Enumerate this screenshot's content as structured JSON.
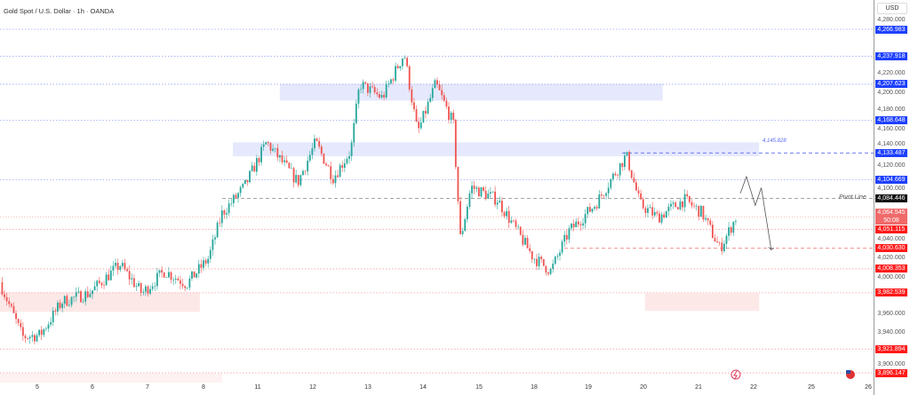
{
  "header": {
    "title": "Gold Spot / U.S. Dollar · 1h · OANDA",
    "currency": "USD"
  },
  "chart_data": {
    "type": "candlestick",
    "title": "Gold Spot / U.S. Dollar · 1h · OANDA",
    "ylim": [
      3890,
      4290
    ],
    "x_tick_labels": [
      "5",
      "6",
      "7",
      "8",
      "11",
      "12",
      "13",
      "14",
      "15",
      "18",
      "19",
      "20",
      "21",
      "22",
      "25",
      "26"
    ],
    "y_tick_labels": [
      "4,280.000",
      "4,220.000",
      "4,200.000",
      "4,180.000",
      "4,160.000",
      "4,140.000",
      "4,120.000",
      "4,100.000",
      "4,040.000",
      "4,020.000",
      "4,000.000",
      "3,960.000",
      "3,940.000",
      "3,900.000"
    ],
    "y_tick_values": [
      4280,
      4220,
      4200,
      4180,
      4160,
      4140,
      4120,
      4100,
      4040,
      4020,
      4000,
      3960,
      3940,
      3900
    ],
    "price_path_day_index_vs_price": [
      [
        -0.68,
        3994
      ],
      [
        -0.27,
        3935
      ],
      [
        0.05,
        3937
      ],
      [
        0.45,
        3973
      ],
      [
        0.94,
        3982
      ],
      [
        1.5,
        4013
      ],
      [
        1.9,
        3982
      ],
      [
        2.31,
        4006
      ],
      [
        2.71,
        3992
      ],
      [
        3.11,
        4020
      ],
      [
        3.35,
        4068
      ],
      [
        3.76,
        4097
      ],
      [
        4.16,
        4145
      ],
      [
        4.73,
        4102
      ],
      [
        5.05,
        4145
      ],
      [
        5.37,
        4107
      ],
      [
        5.69,
        4136
      ],
      [
        5.85,
        4208
      ],
      [
        6.26,
        4193
      ],
      [
        6.66,
        4241
      ],
      [
        6.9,
        4155
      ],
      [
        7.23,
        4208
      ],
      [
        7.55,
        4165
      ],
      [
        7.68,
        4040
      ],
      [
        7.87,
        4097
      ],
      [
        8.35,
        4083
      ],
      [
        9.0,
        4021
      ],
      [
        9.32,
        4006
      ],
      [
        9.65,
        4049
      ],
      [
        10.13,
        4078
      ],
      [
        10.69,
        4131
      ],
      [
        10.94,
        4078
      ],
      [
        11.26,
        4064
      ],
      [
        11.74,
        4083
      ],
      [
        12.06,
        4069
      ],
      [
        12.39,
        4030
      ],
      [
        12.68,
        4064
      ]
    ],
    "levels": [
      {
        "label": "4,266.983",
        "value": 4266.983,
        "color": "#1e40ff"
      },
      {
        "label": "4,237.918",
        "value": 4237.918,
        "color": "#1e40ff"
      },
      {
        "label": "4,207.623",
        "value": 4207.623,
        "color": "#1e40ff"
      },
      {
        "label": "4,168.648",
        "value": 4168.648,
        "color": "#1e40ff"
      },
      {
        "label": "4,133.487",
        "value": 4133.487,
        "color": "#1e40ff"
      },
      {
        "label": "4,104.669",
        "value": 4104.669,
        "color": "#1e40ff"
      },
      {
        "label": "4,084.446",
        "value": 4084.446,
        "color": "#111111"
      },
      {
        "label": "4,051.115",
        "value": 4051.115,
        "color": "#ff1a1a"
      },
      {
        "label": "4,030.630",
        "value": 4030.63,
        "color": "#ff1a1a"
      },
      {
        "label": "4,008.353",
        "value": 4008.353,
        "color": "#ff1a1a"
      },
      {
        "label": "3,982.539",
        "value": 3982.539,
        "color": "#ff1a1a"
      },
      {
        "label": "3,921.894",
        "value": 3921.894,
        "color": "#ff1a1a"
      },
      {
        "label": "3,896.147",
        "value": 3896.147,
        "color": "#ff1a1a"
      }
    ],
    "current_price": {
      "label": "4,064.545",
      "value": 4064.545,
      "countdown": "50:08",
      "color": "#f06a6a"
    },
    "annotations": {
      "pivot_label": "Pivot Line",
      "pivot_value": 4084.446,
      "level_label": "4,145.828"
    },
    "zones": [
      {
        "from_day": 4.4,
        "to_day": 11.35,
        "low": 4190,
        "high": 4208,
        "color": "#e6e9fd"
      },
      {
        "from_day": 3.55,
        "to_day": 13.1,
        "low": 4130,
        "high": 4145,
        "color": "#e6e9fd"
      },
      {
        "from_day": -0.7,
        "to_day": 2.95,
        "low": 3962,
        "high": 3983,
        "color": "#fde8e8"
      },
      {
        "from_day": 11.03,
        "to_day": 13.1,
        "low": 3963,
        "high": 3982,
        "color": "#fde8e8"
      }
    ],
    "projection": [
      [
        12.76,
        4090
      ],
      [
        12.87,
        4108
      ],
      [
        13.03,
        4077
      ],
      [
        13.14,
        4096
      ],
      [
        13.32,
        4029
      ]
    ],
    "colors": {
      "up": "#26a69a",
      "down": "#ef5350"
    }
  }
}
